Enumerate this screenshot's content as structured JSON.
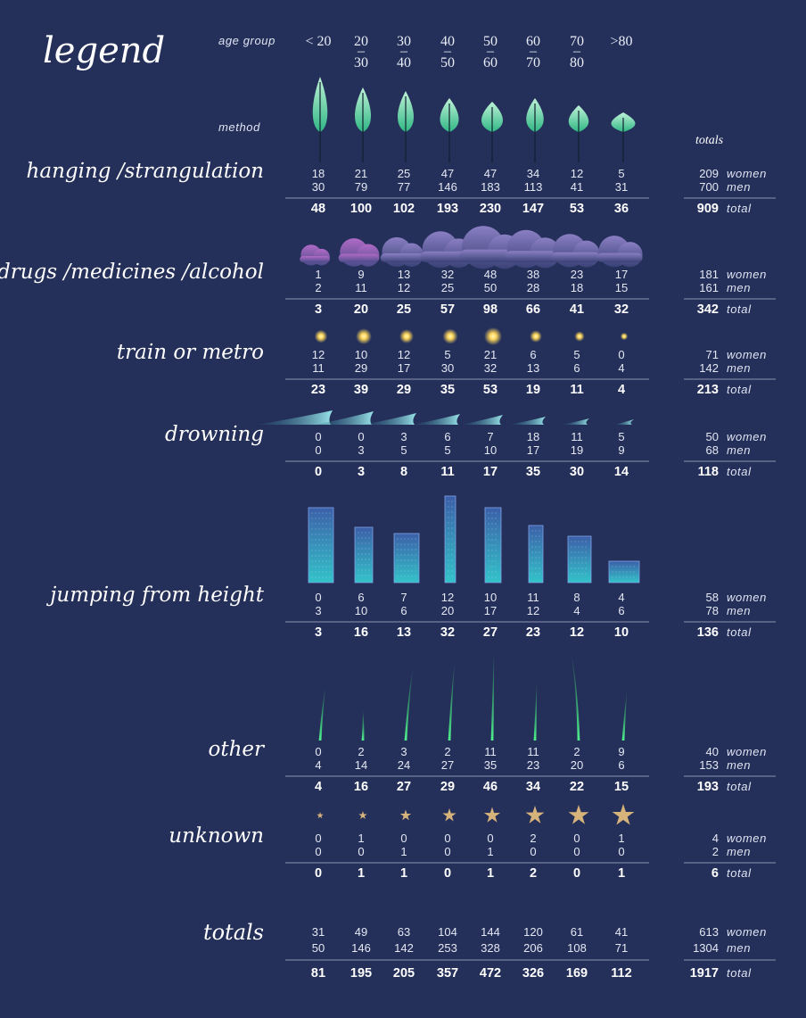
{
  "legend": {
    "title": "legend",
    "age_group_label": "age group",
    "method_label": "method",
    "totals_label": "totals",
    "age_groups": [
      [
        "< 20"
      ],
      [
        "20",
        "30"
      ],
      [
        "30",
        "40"
      ],
      [
        "40",
        "50"
      ],
      [
        "50",
        "60"
      ],
      [
        "60",
        "70"
      ],
      [
        "70",
        "80"
      ],
      [
        ">80"
      ]
    ],
    "range_dash": "–"
  },
  "row_labels": {
    "women": "women",
    "men": "men",
    "total": "total"
  },
  "colors": {
    "background": "#25305a",
    "tree": "#5fd6a6",
    "cloud": "#9a4fb4",
    "light": "#ffd75a",
    "wave": "#7ad8e0",
    "building": "#38b7c9",
    "grass": "#40d77c",
    "star": "#d6b37a"
  },
  "chart_data": {
    "type": "table",
    "columns": [
      "< 20",
      "20-30",
      "30-40",
      "40-50",
      "50-60",
      "60-70",
      "70-80",
      ">80"
    ],
    "methods": [
      {
        "name": "hanging /strangulation",
        "icon": "tree-icon",
        "women": [
          18,
          21,
          25,
          47,
          47,
          34,
          12,
          5
        ],
        "men": [
          30,
          79,
          77,
          146,
          183,
          113,
          41,
          31
        ],
        "total": [
          48,
          100,
          102,
          193,
          230,
          147,
          53,
          36
        ],
        "sum_women": 209,
        "sum_men": 700,
        "sum_total": 909
      },
      {
        "name": "drugs /medicines /alcohol",
        "icon": "cloud-icon",
        "women": [
          1,
          9,
          13,
          32,
          48,
          38,
          23,
          17
        ],
        "men": [
          2,
          11,
          12,
          25,
          50,
          28,
          18,
          15
        ],
        "total": [
          3,
          20,
          25,
          57,
          98,
          66,
          41,
          32
        ],
        "sum_women": 181,
        "sum_men": 161,
        "sum_total": 342
      },
      {
        "name": "train or metro",
        "icon": "light-icon",
        "women": [
          12,
          10,
          12,
          5,
          21,
          6,
          5,
          0
        ],
        "men": [
          11,
          29,
          17,
          30,
          32,
          13,
          6,
          4
        ],
        "total": [
          23,
          39,
          29,
          35,
          53,
          19,
          11,
          4
        ],
        "sum_women": 71,
        "sum_men": 142,
        "sum_total": 213
      },
      {
        "name": "drowning",
        "icon": "wave-icon",
        "women": [
          0,
          0,
          3,
          6,
          7,
          18,
          11,
          5
        ],
        "men": [
          0,
          3,
          5,
          5,
          10,
          17,
          19,
          9
        ],
        "total": [
          0,
          3,
          8,
          11,
          17,
          35,
          30,
          14
        ],
        "sum_women": 50,
        "sum_men": 68,
        "sum_total": 118
      },
      {
        "name": "jumping from height",
        "icon": "building-icon",
        "women": [
          0,
          6,
          7,
          12,
          10,
          11,
          8,
          4
        ],
        "men": [
          3,
          10,
          6,
          20,
          17,
          12,
          4,
          6
        ],
        "total": [
          3,
          16,
          13,
          32,
          27,
          23,
          12,
          10
        ],
        "sum_women": 58,
        "sum_men": 78,
        "sum_total": 136
      },
      {
        "name": "other",
        "icon": "grass-icon",
        "women": [
          0,
          2,
          3,
          2,
          11,
          11,
          2,
          9
        ],
        "men": [
          4,
          14,
          24,
          27,
          35,
          23,
          20,
          6
        ],
        "total": [
          4,
          16,
          27,
          29,
          46,
          34,
          22,
          15
        ],
        "sum_women": 40,
        "sum_men": 153,
        "sum_total": 193
      },
      {
        "name": "unknown",
        "icon": "star-icon",
        "women": [
          0,
          1,
          0,
          0,
          0,
          2,
          0,
          1
        ],
        "men": [
          0,
          0,
          1,
          0,
          1,
          0,
          0,
          0
        ],
        "total": [
          0,
          1,
          1,
          0,
          1,
          2,
          0,
          1
        ],
        "sum_women": 4,
        "sum_men": 2,
        "sum_total": 6
      }
    ],
    "totals": {
      "name": "totals",
      "women": [
        31,
        49,
        63,
        104,
        144,
        120,
        61,
        41
      ],
      "men": [
        50,
        146,
        142,
        253,
        328,
        206,
        108,
        71
      ],
      "total": [
        81,
        195,
        205,
        357,
        472,
        326,
        169,
        112
      ],
      "sum_women": 613,
      "sum_men": 1304,
      "sum_total": 1917
    }
  }
}
